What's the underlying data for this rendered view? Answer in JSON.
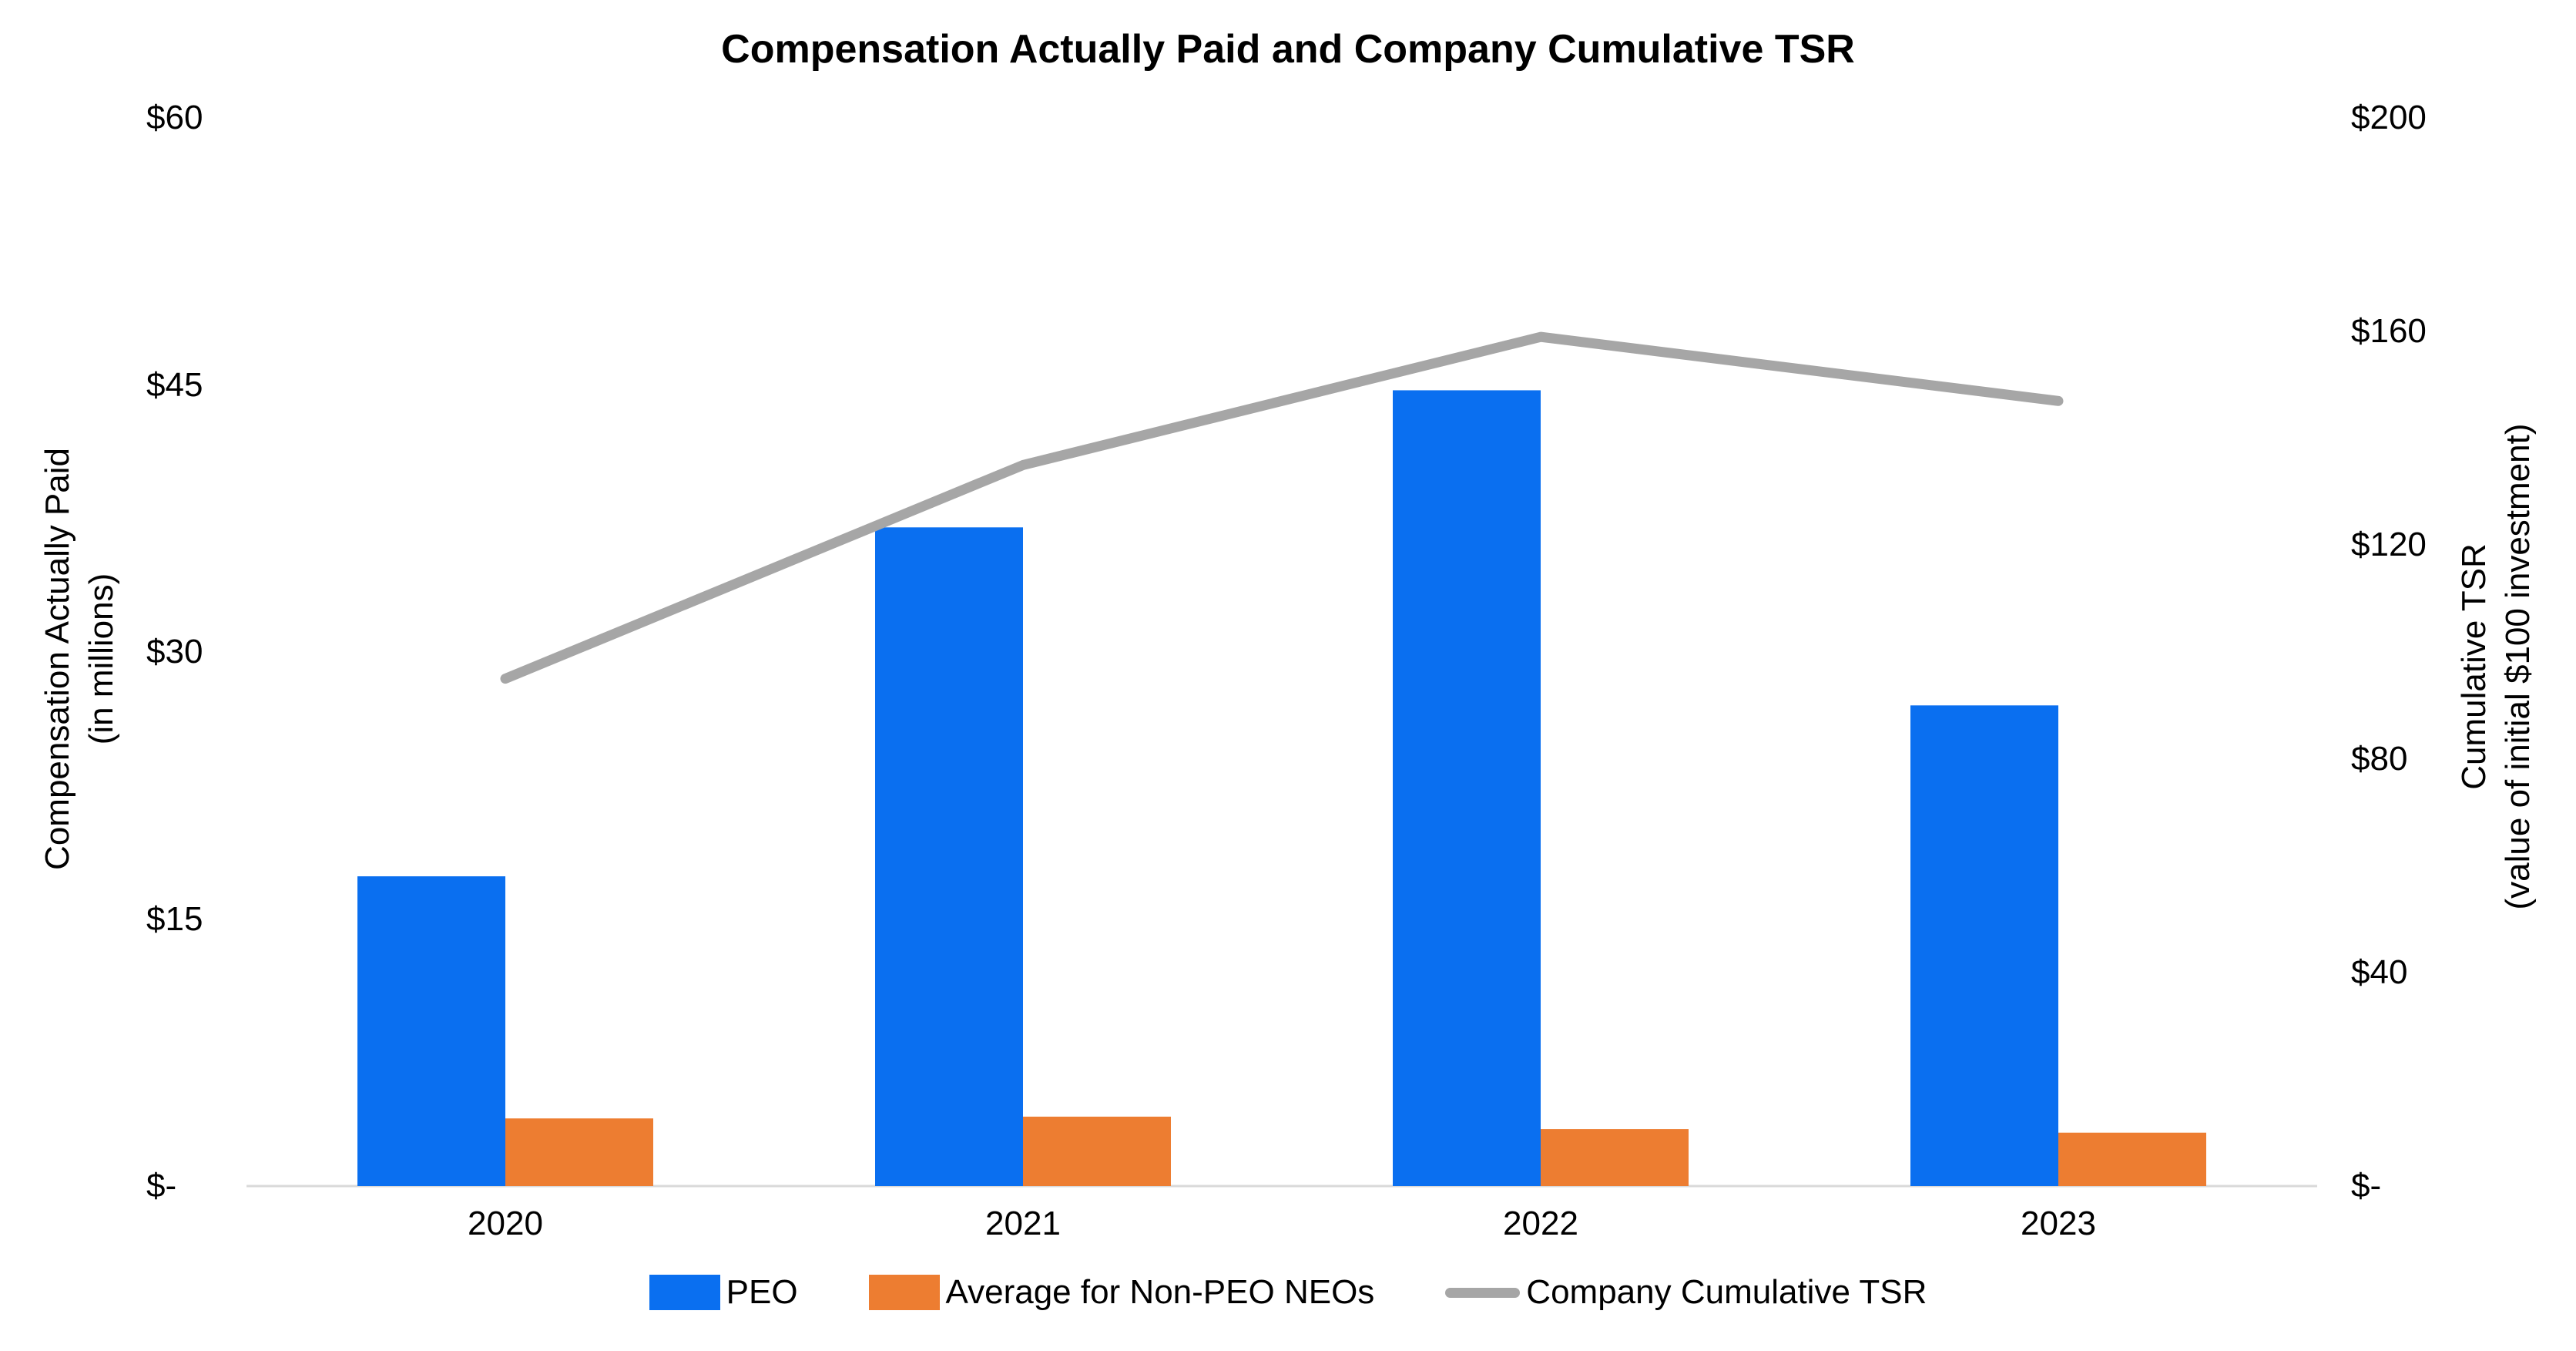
{
  "chart_data": {
    "type": "combo-bar-line",
    "title": "Compensation Actually Paid and Company Cumulative TSR",
    "categories": [
      "2020",
      "2021",
      "2022",
      "2023"
    ],
    "series": [
      {
        "name": "PEO",
        "kind": "bar",
        "axis": "left",
        "color": "#0A6FF0",
        "values": [
          17.4,
          37.0,
          44.7,
          27.0
        ]
      },
      {
        "name": "Average for Non-PEO NEOs",
        "kind": "bar",
        "axis": "left",
        "color": "#ED7D31",
        "values": [
          3.8,
          3.9,
          3.2,
          3.0
        ]
      },
      {
        "name": "Company Cumulative TSR",
        "kind": "line",
        "axis": "right",
        "color": "#A6A6A6",
        "values": [
          95,
          135,
          159,
          147
        ]
      }
    ],
    "left_axis": {
      "title_line1": "Compensation Actually Paid",
      "title_line2": "(in millions)",
      "ticks": [
        "$-",
        "$15",
        "$30",
        "$45",
        "$60"
      ],
      "tick_values": [
        0,
        15,
        30,
        45,
        60
      ],
      "min": 0,
      "max": 60
    },
    "right_axis": {
      "title_line1": "Cumulative TSR",
      "title_line2": "(value of initial $100 investment)",
      "ticks": [
        "$-",
        "$40",
        "$80",
        "$120",
        "$160",
        "$200"
      ],
      "tick_values": [
        0,
        40,
        80,
        120,
        160,
        200
      ],
      "min": 0,
      "max": 200
    },
    "legend_position": "bottom",
    "gridlines": false,
    "axis_line_color": "#D9D9D9",
    "background": "#FFFFFF",
    "text_color": "#000000"
  }
}
